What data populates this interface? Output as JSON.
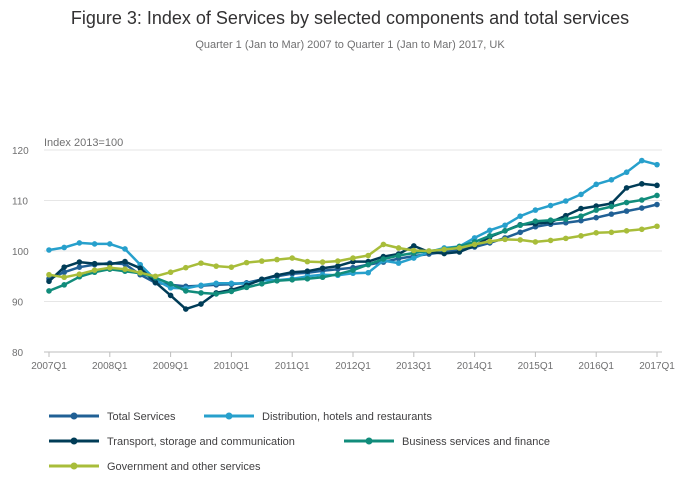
{
  "chart_data": {
    "type": "line",
    "title": "Figure 3: Index of Services by selected components and total services",
    "subtitle": "Quarter 1 (Jan to Mar) 2007 to Quarter 1 (Jan to Mar) 2017, UK",
    "ylabel": "Index 2013=100",
    "xlabel": "",
    "ylim": [
      80,
      120
    ],
    "yticks": [
      80,
      90,
      100,
      110,
      120
    ],
    "grid": true,
    "legend_position": "bottom",
    "x": [
      "2007Q1",
      "2007Q2",
      "2007Q3",
      "2007Q4",
      "2008Q1",
      "2008Q2",
      "2008Q3",
      "2008Q4",
      "2009Q1",
      "2009Q2",
      "2009Q3",
      "2009Q4",
      "2010Q1",
      "2010Q2",
      "2010Q3",
      "2010Q4",
      "2011Q1",
      "2011Q2",
      "2011Q3",
      "2011Q4",
      "2012Q1",
      "2012Q2",
      "2012Q3",
      "2012Q4",
      "2013Q1",
      "2013Q2",
      "2013Q3",
      "2013Q4",
      "2014Q1",
      "2014Q2",
      "2014Q3",
      "2014Q4",
      "2015Q1",
      "2015Q2",
      "2015Q3",
      "2015Q4",
      "2016Q1",
      "2016Q2",
      "2016Q3",
      "2016Q4",
      "2017Q1"
    ],
    "xticks": [
      "2007Q1",
      "2008Q1",
      "2009Q1",
      "2010Q1",
      "2011Q1",
      "2012Q1",
      "2013Q1",
      "2014Q1",
      "2015Q1",
      "2016Q1",
      "2017Q1"
    ],
    "series": [
      {
        "name": "Total Services",
        "color": "#206095",
        "values": [
          94.5,
          95.8,
          96.8,
          97.3,
          97.6,
          97.4,
          95.3,
          93.7,
          93.3,
          93.0,
          93.1,
          93.3,
          93.4,
          93.7,
          94.4,
          95.0,
          95.5,
          95.7,
          96.1,
          96.4,
          96.7,
          97.3,
          97.8,
          98.5,
          99.0,
          99.4,
          99.8,
          100.2,
          100.8,
          101.6,
          102.6,
          103.7,
          104.8,
          105.3,
          105.6,
          106.0,
          106.6,
          107.3,
          107.9,
          108.5,
          109.2
        ]
      },
      {
        "name": "Distribution, hotels and restaurants",
        "color": "#27a0cc",
        "values": [
          100.2,
          100.7,
          101.6,
          101.4,
          101.4,
          100.4,
          97.3,
          94.3,
          92.7,
          92.6,
          93.2,
          93.6,
          93.6,
          93.5,
          94.2,
          94.2,
          94.5,
          95.0,
          95.3,
          95.2,
          95.6,
          95.7,
          98.1,
          97.6,
          98.6,
          99.8,
          100.6,
          100.9,
          102.6,
          104.1,
          105.1,
          106.9,
          108.1,
          109.0,
          109.9,
          111.2,
          113.2,
          114.1,
          115.6,
          117.9,
          117.1
        ]
      },
      {
        "name": "Transport, storage and communication",
        "color": "#003c57",
        "values": [
          94.0,
          96.8,
          97.8,
          97.5,
          97.4,
          97.9,
          96.6,
          93.8,
          91.2,
          88.5,
          89.5,
          91.7,
          92.3,
          93.2,
          94.4,
          95.2,
          95.8,
          96.0,
          96.6,
          97.0,
          97.9,
          97.9,
          98.9,
          99.4,
          101.0,
          99.8,
          99.5,
          99.8,
          101.0,
          102.8,
          104.0,
          105.2,
          105.4,
          105.7,
          107.0,
          108.4,
          108.9,
          109.4,
          112.5,
          113.3,
          113.0
        ]
      },
      {
        "name": "Business services and finance",
        "color": "#118c7b",
        "values": [
          92.1,
          93.3,
          94.9,
          95.8,
          96.4,
          96.0,
          95.6,
          94.7,
          93.5,
          92.1,
          91.7,
          91.5,
          92.0,
          92.8,
          93.5,
          94.1,
          94.3,
          94.5,
          94.8,
          95.4,
          96.2,
          97.3,
          98.4,
          99.1,
          99.6,
          100.0,
          100.3,
          100.9,
          101.8,
          103.0,
          104.0,
          105.1,
          105.9,
          106.1,
          106.3,
          106.9,
          108.1,
          108.8,
          109.6,
          110.1,
          111.0
        ]
      },
      {
        "name": "Government and other services",
        "color": "#a8bd3a",
        "values": [
          95.3,
          94.8,
          95.4,
          96.2,
          96.7,
          96.4,
          95.7,
          95.0,
          95.8,
          96.7,
          97.6,
          97.0,
          96.8,
          97.7,
          98.0,
          98.3,
          98.6,
          97.9,
          97.8,
          98.0,
          98.6,
          99.1,
          101.3,
          100.6,
          100.1,
          100.0,
          100.3,
          100.6,
          101.3,
          101.9,
          102.3,
          102.2,
          101.8,
          102.1,
          102.5,
          103.0,
          103.6,
          103.7,
          104.0,
          104.3,
          104.9
        ]
      }
    ]
  }
}
